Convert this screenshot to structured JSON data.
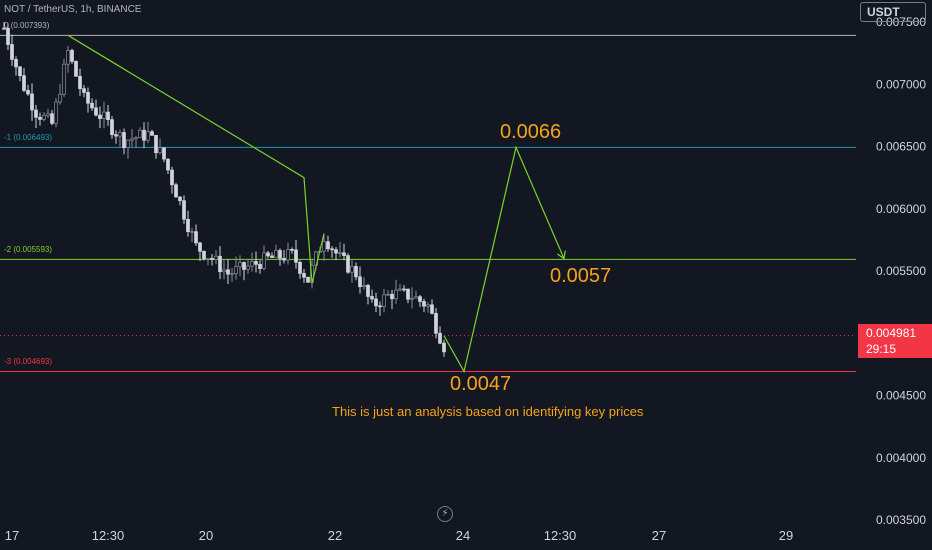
{
  "header": {
    "symbol_text": "NOT / TetherUS, 1h, BINANCE",
    "currency": "USDT"
  },
  "current_price": {
    "value": "0.004981",
    "countdown": "29:15",
    "color": "#f23645"
  },
  "fib_levels": [
    {
      "label": "0 (0.007393)",
      "price": 0.007393,
      "color": "#b2b5be"
    },
    {
      "label": "-1 (0.006493)",
      "price": 0.006493,
      "color": "#1e9ab0"
    },
    {
      "label": "-2 (0.005593)",
      "price": 0.005593,
      "color": "#7bd428"
    },
    {
      "label": "-3 (0.004693)",
      "price": 0.004693,
      "color": "#f23645"
    }
  ],
  "targets": [
    {
      "label": "0.0066",
      "price": 0.0066
    },
    {
      "label": "0.0057",
      "price": 0.0057
    },
    {
      "label": "0.0047",
      "price": 0.0047
    }
  ],
  "annotation": "This is just an analysis based on identifying key prices",
  "replay_icon": "replay-icon",
  "chart_data": {
    "type": "candlestick",
    "symbol": "NOT / TetherUS",
    "interval": "1h",
    "exchange": "BINANCE",
    "ylim": [
      0.0035,
      0.00755
    ],
    "y_ticks": [
      "0.007500",
      "0.007000",
      "0.006500",
      "0.006000",
      "0.005500",
      "0.005000",
      "0.004500",
      "0.004000",
      "0.003500"
    ],
    "x_ticks": [
      "17",
      "12:30",
      "20",
      "22",
      "24",
      "12:30",
      "27",
      "29"
    ],
    "price_path": [
      {
        "i": 0,
        "p": 0.00745
      },
      {
        "i": 4,
        "p": 0.00705
      },
      {
        "i": 8,
        "p": 0.00678
      },
      {
        "i": 12,
        "p": 0.00668
      },
      {
        "i": 16,
        "p": 0.00726
      },
      {
        "i": 20,
        "p": 0.00688
      },
      {
        "i": 25,
        "p": 0.00672
      },
      {
        "i": 30,
        "p": 0.00655
      },
      {
        "i": 36,
        "p": 0.0066
      },
      {
        "i": 40,
        "p": 0.0064
      },
      {
        "i": 44,
        "p": 0.00605
      },
      {
        "i": 48,
        "p": 0.0057
      },
      {
        "i": 52,
        "p": 0.0056
      },
      {
        "i": 56,
        "p": 0.00548
      },
      {
        "i": 60,
        "p": 0.00552
      },
      {
        "i": 66,
        "p": 0.0056
      },
      {
        "i": 72,
        "p": 0.00563
      },
      {
        "i": 76,
        "p": 0.00543
      },
      {
        "i": 80,
        "p": 0.00578
      },
      {
        "i": 84,
        "p": 0.0056
      },
      {
        "i": 88,
        "p": 0.00548
      },
      {
        "i": 92,
        "p": 0.00522
      },
      {
        "i": 97,
        "p": 0.00532
      },
      {
        "i": 102,
        "p": 0.0053
      },
      {
        "i": 106,
        "p": 0.00522
      },
      {
        "i": 110,
        "p": 0.0049
      }
    ],
    "projection": [
      {
        "i": 110,
        "p": 0.00498
      },
      {
        "i": 115,
        "p": 0.004693
      },
      {
        "i": 128,
        "p": 0.006493
      },
      {
        "i": 140,
        "p": 0.0056
      }
    ],
    "prior_path": [
      {
        "i": 16,
        "p": 0.007393
      },
      {
        "i": 75,
        "p": 0.00625
      },
      {
        "i": 77,
        "p": 0.0054
      },
      {
        "i": 80,
        "p": 0.0058
      }
    ]
  }
}
